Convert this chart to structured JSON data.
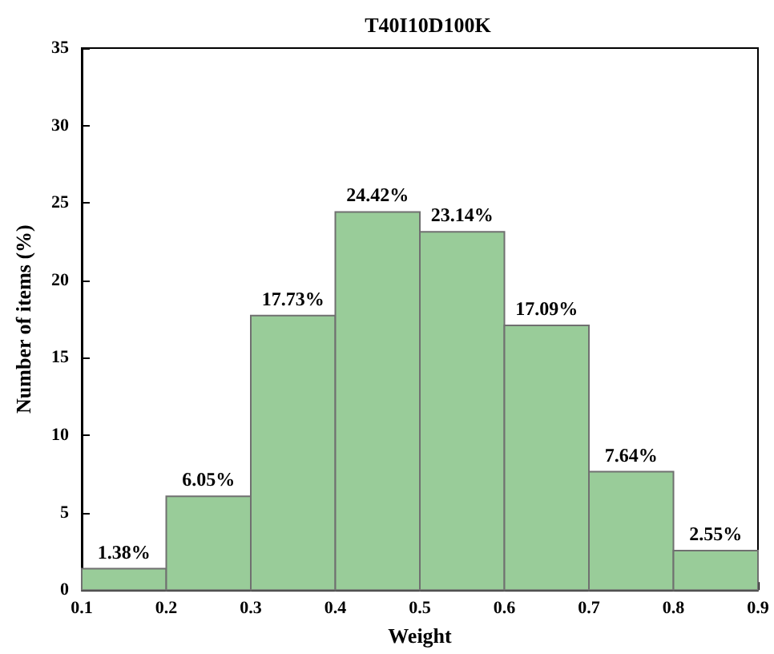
{
  "chart_data": {
    "type": "histogram",
    "title": "T40I10D100K",
    "xlabel": "Weight",
    "ylabel": "Number of items (%)",
    "bins": [
      0.1,
      0.2,
      0.3,
      0.4,
      0.5,
      0.6,
      0.7,
      0.8,
      0.9
    ],
    "values": [
      1.38,
      6.05,
      17.73,
      24.42,
      23.14,
      17.09,
      7.64,
      2.55
    ],
    "value_labels": [
      "1.38%",
      "6.05%",
      "17.73%",
      "24.42%",
      "23.14%",
      "17.09%",
      "7.64%",
      "2.55%"
    ],
    "color": "#99cc99",
    "xlim": [
      0.1,
      0.9
    ],
    "xticks": [
      0.1,
      0.2,
      0.3,
      0.4,
      0.5,
      0.6,
      0.7,
      0.8,
      0.9
    ],
    "ylim": [
      0,
      35
    ],
    "yticks": [
      0,
      5,
      10,
      15,
      20,
      25,
      30,
      35
    ]
  }
}
